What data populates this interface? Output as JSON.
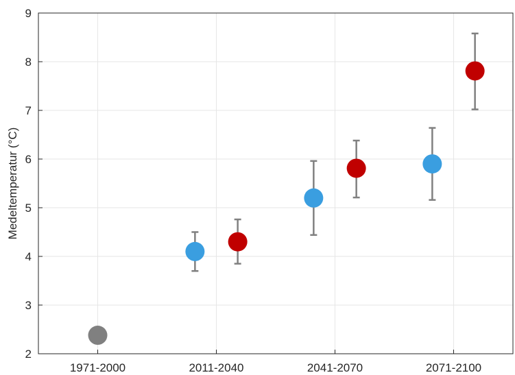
{
  "chart_data": {
    "type": "scatter",
    "title": "",
    "xlabel": "",
    "ylabel": "Medeltemperatur (°C)",
    "categories": [
      "1971-2000",
      "2011-2040",
      "2041-2070",
      "2071-2100"
    ],
    "ylim": [
      2,
      9
    ],
    "yticks": [
      2,
      3,
      4,
      5,
      6,
      7,
      8,
      9
    ],
    "grid": true,
    "series": [
      {
        "color": "#808080",
        "points": [
          {
            "category": "1971-2000",
            "y": 2.38
          }
        ]
      },
      {
        "color": "#3a9ee0",
        "points": [
          {
            "category": "2011-2040",
            "y": 4.1,
            "low": 3.7,
            "high": 4.5
          },
          {
            "category": "2041-2070",
            "y": 5.2,
            "low": 4.44,
            "high": 5.96
          },
          {
            "category": "2071-2100",
            "y": 5.9,
            "low": 5.16,
            "high": 6.64
          }
        ]
      },
      {
        "color": "#c00000",
        "points": [
          {
            "category": "2011-2040",
            "y": 4.3,
            "low": 3.85,
            "high": 4.76
          },
          {
            "category": "2041-2070",
            "y": 5.81,
            "low": 5.21,
            "high": 6.38
          },
          {
            "category": "2071-2100",
            "y": 7.81,
            "low": 7.02,
            "high": 8.58
          }
        ]
      }
    ],
    "errorbar_color": "#808080"
  }
}
